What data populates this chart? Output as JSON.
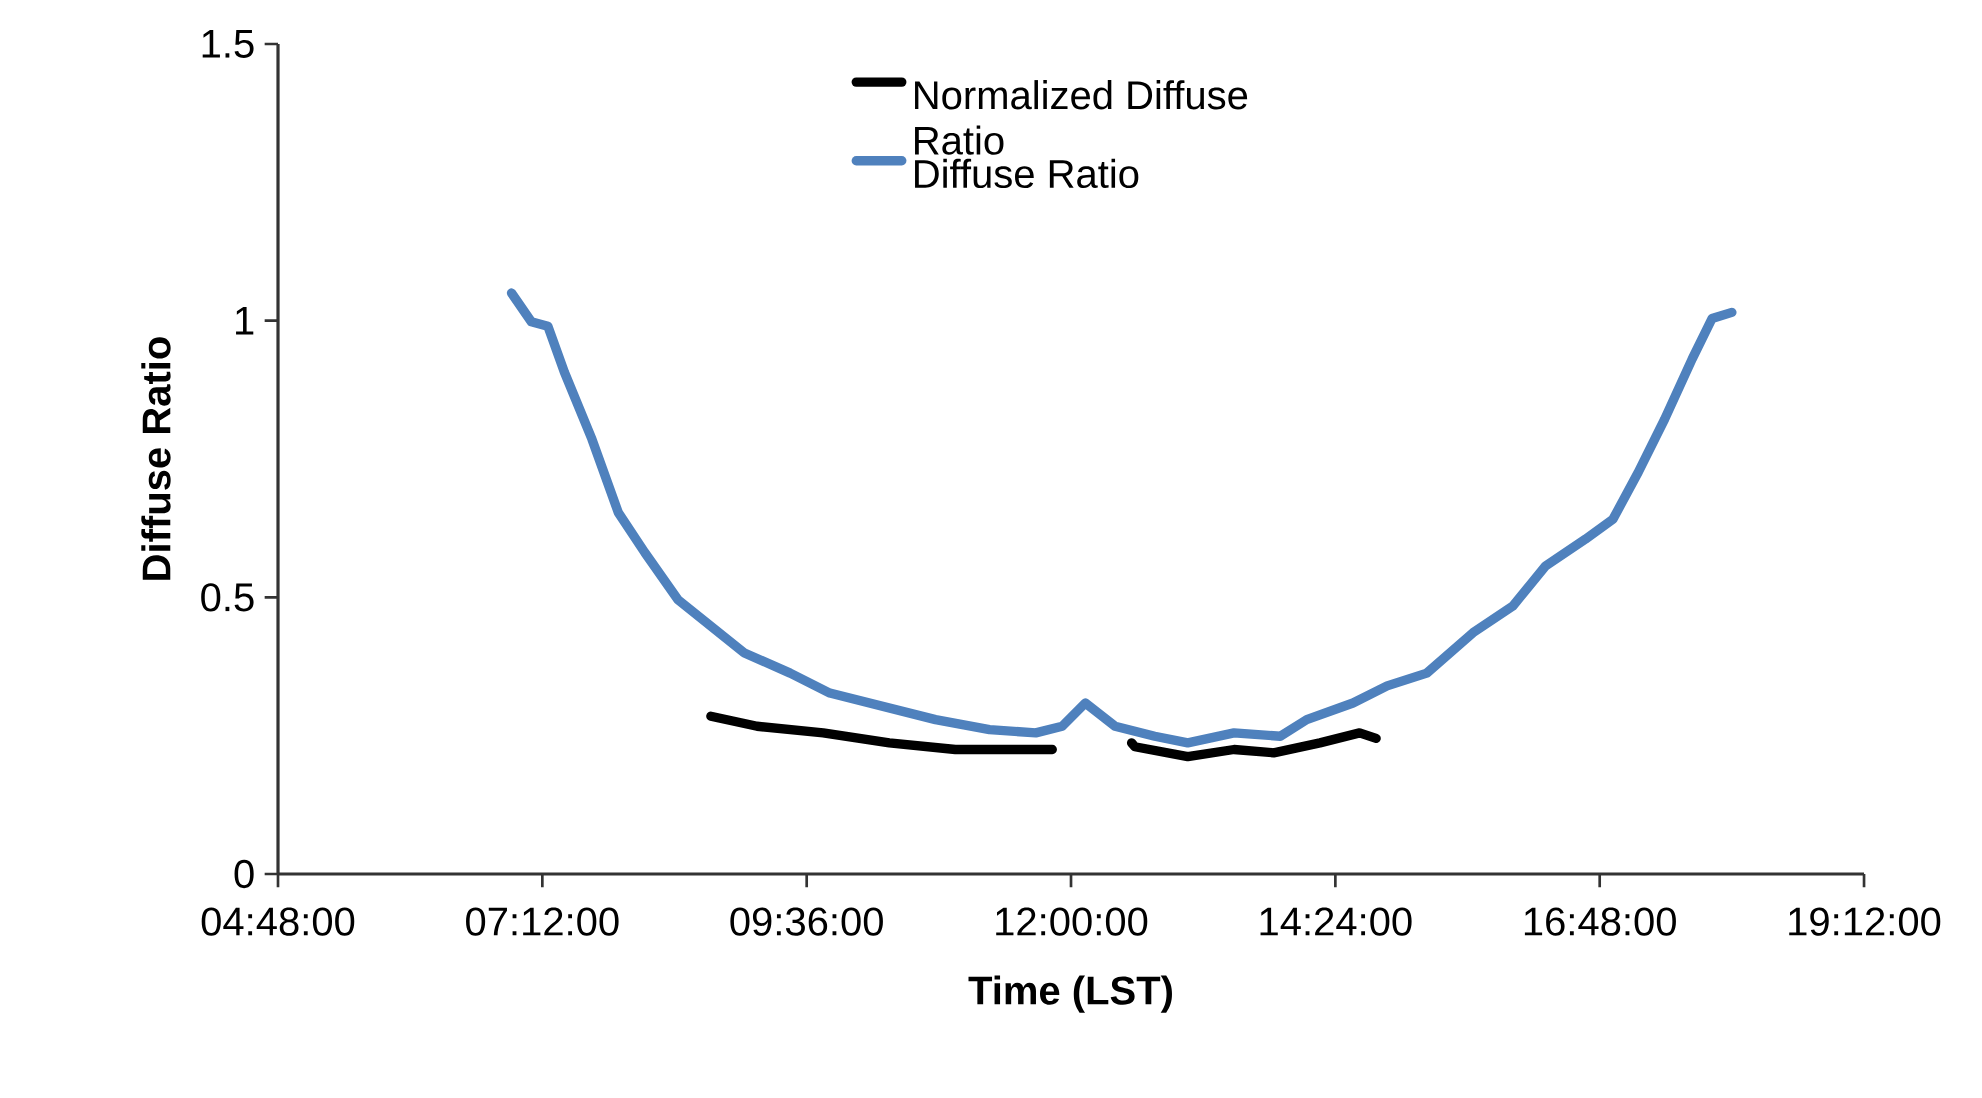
{
  "chart_data": {
    "type": "line",
    "xlabel": "Time (LST)",
    "ylabel": "Diffuse Ratio",
    "xlim": [
      4.8,
      19.2
    ],
    "ylim": [
      0,
      1.5
    ],
    "xticks": [
      {
        "value": 4.8,
        "label": "04:48:00"
      },
      {
        "value": 7.2,
        "label": "07:12:00"
      },
      {
        "value": 9.6,
        "label": "09:36:00"
      },
      {
        "value": 12.0,
        "label": "12:00:00"
      },
      {
        "value": 14.4,
        "label": "14:24:00"
      },
      {
        "value": 16.8,
        "label": "16:48:00"
      },
      {
        "value": 19.2,
        "label": "19:12:00"
      }
    ],
    "yticks": [
      0,
      0.5,
      1,
      1.5
    ],
    "legend": "top",
    "grid": false,
    "marker": "none",
    "line_style": "solid",
    "series": [
      {
        "name": "Normalized Diffuse Ratio",
        "color": "#000000",
        "x": [
          8.73,
          9.15,
          9.75,
          10.35,
          10.95,
          11.55,
          11.83,
          12.2,
          12.55,
          12.58,
          13.06,
          13.48,
          13.84,
          14.26,
          14.62,
          14.77
        ],
        "values": [
          0.285,
          0.267,
          0.255,
          0.237,
          0.225,
          0.225,
          0.225,
          null,
          0.237,
          0.23,
          0.212,
          0.225,
          0.219,
          0.237,
          0.255,
          0.245
        ]
      },
      {
        "name": "Diffuse Ratio",
        "color": "#4f81bd",
        "x": [
          6.92,
          7.1,
          7.25,
          7.4,
          7.65,
          7.89,
          8.13,
          8.43,
          8.73,
          9.03,
          9.45,
          9.81,
          10.29,
          10.77,
          11.26,
          11.68,
          11.92,
          12.13,
          12.4,
          12.76,
          13.06,
          13.48,
          13.9,
          14.14,
          14.56,
          14.87,
          15.23,
          15.65,
          16.01,
          16.31,
          16.67,
          16.92,
          17.15,
          17.39,
          17.64,
          17.82,
          18.0
        ],
        "values": [
          1.05,
          0.998,
          0.99,
          0.907,
          0.786,
          0.653,
          0.581,
          0.496,
          0.448,
          0.4,
          0.363,
          0.327,
          0.303,
          0.279,
          0.261,
          0.255,
          0.267,
          0.309,
          0.267,
          0.249,
          0.237,
          0.255,
          0.249,
          0.279,
          0.309,
          0.34,
          0.363,
          0.436,
          0.484,
          0.557,
          0.605,
          0.641,
          0.726,
          0.822,
          0.931,
          1.004,
          1.015
        ]
      }
    ]
  }
}
